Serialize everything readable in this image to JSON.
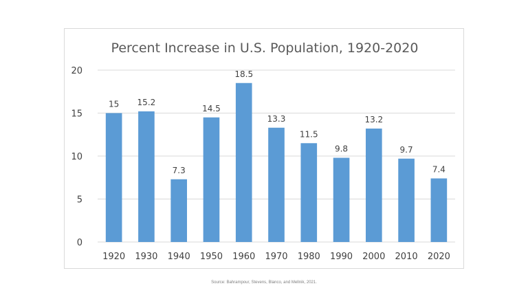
{
  "chart_data": {
    "type": "bar",
    "title": "Percent Increase in U.S. Population, 1920-2020",
    "xlabel": "",
    "ylabel": "",
    "categories": [
      "1920",
      "1930",
      "1940",
      "1950",
      "1960",
      "1970",
      "1980",
      "1990",
      "2000",
      "2010",
      "2020"
    ],
    "values": [
      15,
      15.2,
      7.3,
      14.5,
      18.5,
      13.3,
      11.5,
      9.8,
      13.2,
      9.7,
      7.4
    ],
    "data_labels": [
      "15",
      "15.2",
      "7.3",
      "14.5",
      "18.5",
      "13.3",
      "11.5",
      "9.8",
      "13.2",
      "9.7",
      "7.4"
    ],
    "yticks": [
      0,
      5,
      10,
      15,
      20
    ],
    "ylim": [
      0,
      20
    ],
    "grid": true,
    "legend": "none",
    "bar_color": "#5b9bd5"
  },
  "source": "Source: Bahrampour, Stevens, Blanco, and Mellnik, 2021."
}
